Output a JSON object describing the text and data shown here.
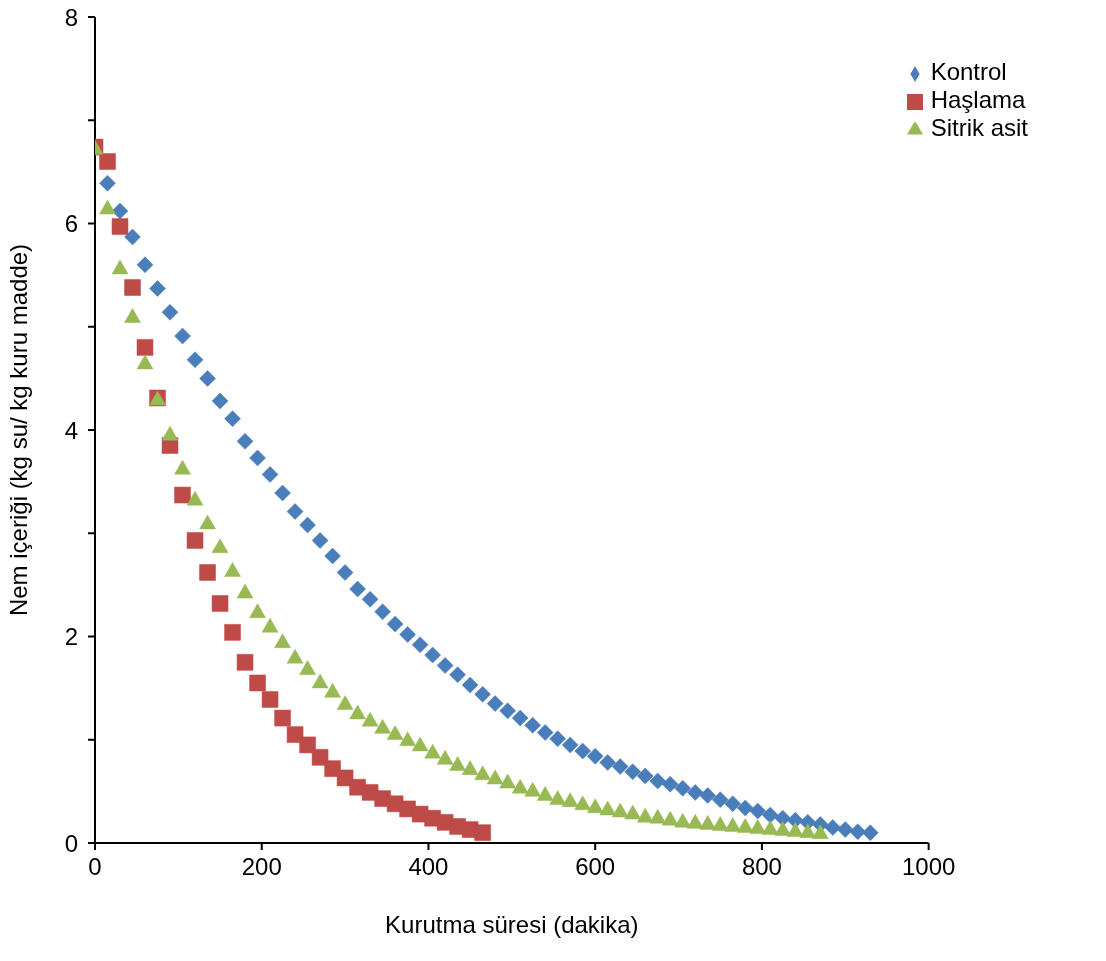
{
  "chart_data": {
    "type": "scatter",
    "xlabel": "Kurutma süresi (dakika)",
    "ylabel": "Nem içeriği (kg su/ kg kuru madde)",
    "xlim": [
      0,
      1000
    ],
    "xticks": [
      0,
      200,
      400,
      600,
      800,
      1000
    ],
    "ylim": [
      0,
      8
    ],
    "yticks": [
      0,
      {
        "value": 1,
        "label": null
      },
      2,
      {
        "value": 3,
        "label": null
      },
      4,
      {
        "value": 5,
        "label": null
      },
      6,
      {
        "value": 7,
        "label": null
      },
      8
    ],
    "grid": false,
    "legend": "top right",
    "series": [
      {
        "name": "Kontrol",
        "color": "#4a7ebb",
        "marker": "diamond",
        "x": [
          15,
          30,
          45,
          60,
          75,
          90,
          105,
          120,
          135,
          150,
          165,
          180,
          195,
          210,
          225,
          240,
          255,
          270,
          285,
          300,
          315,
          330,
          345,
          360,
          375,
          390,
          405,
          420,
          435,
          450,
          465,
          480,
          495,
          510,
          525,
          540,
          555,
          570,
          585,
          600,
          615,
          630,
          645,
          660,
          675,
          690,
          705,
          720,
          735,
          750,
          765,
          780,
          795,
          810,
          825,
          840,
          855,
          870,
          885,
          900,
          915,
          930
        ],
        "values": [
          6.39,
          6.12,
          5.87,
          5.6,
          5.37,
          5.14,
          4.91,
          4.68,
          4.5,
          4.28,
          4.11,
          3.89,
          3.73,
          3.57,
          3.39,
          3.21,
          3.08,
          2.93,
          2.78,
          2.62,
          2.46,
          2.36,
          2.24,
          2.12,
          2.02,
          1.92,
          1.82,
          1.72,
          1.63,
          1.53,
          1.44,
          1.35,
          1.28,
          1.21,
          1.14,
          1.07,
          1.01,
          0.95,
          0.89,
          0.84,
          0.78,
          0.74,
          0.69,
          0.65,
          0.6,
          0.57,
          0.53,
          0.49,
          0.46,
          0.42,
          0.38,
          0.34,
          0.31,
          0.27,
          0.24,
          0.22,
          0.2,
          0.18,
          0.15,
          0.13,
          0.11,
          0.1
        ]
      },
      {
        "name": "Haşlama",
        "color": "#be4b48",
        "marker": "square",
        "x": [
          0,
          15,
          30,
          45,
          60,
          75,
          90,
          105,
          120,
          135,
          150,
          165,
          180,
          195,
          210,
          225,
          240,
          255,
          270,
          285,
          300,
          315,
          330,
          345,
          360,
          375,
          390,
          405,
          420,
          435,
          450,
          465
        ],
        "values": [
          6.74,
          6.6,
          5.97,
          5.38,
          4.8,
          4.31,
          3.85,
          3.37,
          2.93,
          2.62,
          2.32,
          2.04,
          1.75,
          1.55,
          1.39,
          1.21,
          1.05,
          0.95,
          0.83,
          0.72,
          0.63,
          0.54,
          0.49,
          0.43,
          0.38,
          0.33,
          0.28,
          0.24,
          0.2,
          0.16,
          0.13,
          0.1
        ]
      },
      {
        "name": "Sitrik asit",
        "color": "#98b954",
        "marker": "triangle",
        "x": [
          0,
          15,
          30,
          45,
          60,
          75,
          90,
          105,
          120,
          135,
          150,
          165,
          180,
          195,
          210,
          225,
          240,
          255,
          270,
          285,
          300,
          315,
          330,
          345,
          360,
          375,
          390,
          405,
          420,
          435,
          450,
          465,
          480,
          495,
          510,
          525,
          540,
          555,
          570,
          585,
          600,
          615,
          630,
          645,
          660,
          675,
          690,
          705,
          720,
          735,
          750,
          765,
          780,
          795,
          810,
          825,
          840,
          855,
          870
        ],
        "values": [
          6.73,
          6.15,
          5.57,
          5.1,
          4.65,
          4.3,
          3.96,
          3.63,
          3.33,
          3.1,
          2.87,
          2.64,
          2.43,
          2.24,
          2.1,
          1.95,
          1.8,
          1.69,
          1.56,
          1.47,
          1.35,
          1.26,
          1.19,
          1.12,
          1.06,
          1.0,
          0.95,
          0.88,
          0.82,
          0.76,
          0.72,
          0.67,
          0.63,
          0.59,
          0.54,
          0.51,
          0.47,
          0.43,
          0.41,
          0.38,
          0.35,
          0.33,
          0.31,
          0.29,
          0.26,
          0.25,
          0.23,
          0.21,
          0.2,
          0.19,
          0.18,
          0.17,
          0.16,
          0.15,
          0.14,
          0.13,
          0.12,
          0.11,
          0.1
        ]
      }
    ]
  }
}
